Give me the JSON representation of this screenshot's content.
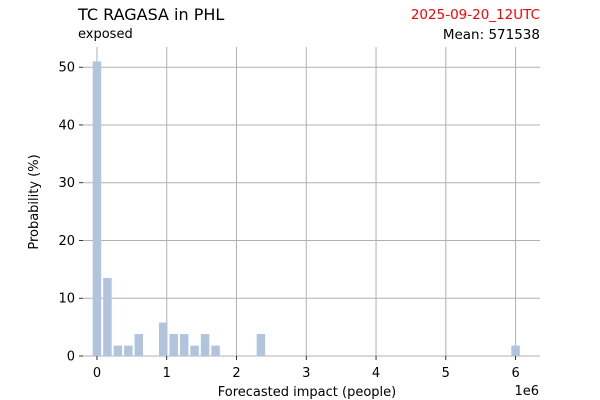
{
  "header": {
    "title": "TC RAGASA in PHL",
    "subtitle": "exposed",
    "date": "2025-09-20_12UTC",
    "mean_label": "Mean: 571538"
  },
  "colors": {
    "bar": "#b0c4de",
    "grid": "#b0b0b0",
    "date_text": "#ff0000"
  },
  "chart_data": {
    "type": "bar",
    "xlabel": "Forecasted impact (people)",
    "ylabel": "Probability (%)",
    "x_scale_label": "1e6",
    "xlim": [
      -0.2,
      6.35
    ],
    "ylim": [
      0,
      53.5
    ],
    "xticks": [
      0,
      1,
      2,
      3,
      4,
      5,
      6
    ],
    "xtick_labels": [
      "0",
      "1",
      "2",
      "3",
      "4",
      "5",
      "6"
    ],
    "yticks": [
      0,
      10,
      20,
      30,
      40,
      50
    ],
    "ytick_labels": [
      "0",
      "10",
      "20",
      "30",
      "40",
      "50"
    ],
    "grid": true,
    "bin_width": 0.15,
    "bins": [
      {
        "x": 0.0,
        "value": 51
      },
      {
        "x": 0.15,
        "value": 13.5
      },
      {
        "x": 0.3,
        "value": 1.8
      },
      {
        "x": 0.45,
        "value": 1.8
      },
      {
        "x": 0.6,
        "value": 3.8
      },
      {
        "x": 0.95,
        "value": 5.8
      },
      {
        "x": 1.1,
        "value": 3.8
      },
      {
        "x": 1.25,
        "value": 3.8
      },
      {
        "x": 1.4,
        "value": 1.8
      },
      {
        "x": 1.55,
        "value": 3.8
      },
      {
        "x": 1.7,
        "value": 1.8
      },
      {
        "x": 2.35,
        "value": 3.8
      },
      {
        "x": 6.0,
        "value": 1.8
      }
    ]
  }
}
